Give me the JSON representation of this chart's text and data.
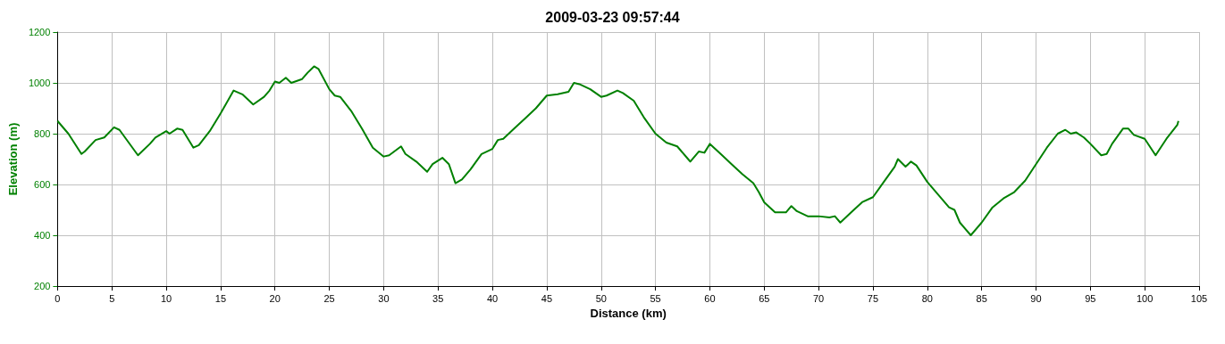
{
  "chart_data": {
    "type": "line",
    "title": "2009-03-23 09:57:44",
    "xlabel": "Distance (km)",
    "ylabel": "Elevation (m)",
    "x": [
      0,
      1,
      2.2,
      2.5,
      3.5,
      4.3,
      5.2,
      5.7,
      7.4,
      8.5,
      9,
      10,
      10.3,
      11,
      11.5,
      12.5,
      13,
      14,
      15,
      16.2,
      17,
      18,
      19,
      19.5,
      20,
      20.4,
      21,
      21.5,
      22.5,
      23,
      23.6,
      24,
      25,
      25.5,
      26,
      27,
      28,
      29,
      30,
      30.5,
      31.6,
      32,
      33,
      34,
      34.5,
      35.4,
      36,
      36.6,
      37.2,
      38,
      39,
      40,
      40.5,
      41,
      42,
      43,
      44,
      45,
      46,
      47,
      47.5,
      48,
      49,
      50,
      50.5,
      51.5,
      52,
      53,
      54,
      55,
      56,
      57,
      58,
      58.2,
      59,
      59.5,
      60,
      61,
      62,
      63,
      64,
      64.5,
      65,
      66,
      67,
      67.5,
      68,
      69,
      70,
      71,
      71.5,
      72,
      73,
      74,
      75,
      76,
      77,
      77.3,
      78,
      78.5,
      79,
      80,
      81,
      82,
      82.5,
      83,
      84,
      85,
      86,
      87,
      88,
      89,
      90,
      91,
      92,
      92.7,
      93.2,
      93.7,
      94.4,
      95,
      96,
      96.5,
      97,
      98,
      98.5,
      99,
      100,
      101,
      102,
      103,
      103.1
    ],
    "series": [
      {
        "color": "#008000",
        "values": [
          850,
          800,
          720,
          730,
          775,
          785,
          825,
          815,
          715,
          760,
          785,
          810,
          800,
          820,
          815,
          745,
          755,
          810,
          880,
          970,
          955,
          915,
          945,
          970,
          1005,
          1000,
          1020,
          1000,
          1015,
          1040,
          1065,
          1055,
          975,
          950,
          945,
          890,
          820,
          745,
          710,
          715,
          750,
          720,
          690,
          650,
          680,
          705,
          680,
          605,
          620,
          660,
          720,
          740,
          775,
          780,
          820,
          860,
          900,
          950,
          955,
          965,
          1000,
          995,
          975,
          945,
          950,
          970,
          960,
          930,
          860,
          800,
          765,
          750,
          700,
          690,
          730,
          725,
          760,
          720,
          680,
          640,
          605,
          570,
          530,
          490,
          490,
          515,
          495,
          475,
          475,
          470,
          475,
          450,
          490,
          530,
          550,
          610,
          670,
          700,
          670,
          690,
          675,
          610,
          560,
          510,
          500,
          450,
          400,
          450,
          510,
          545,
          570,
          615,
          680,
          745,
          800,
          815,
          800,
          805,
          785,
          760,
          715,
          720,
          760,
          820,
          820,
          795,
          780,
          715,
          780,
          835,
          850
        ]
      }
    ],
    "xlim": [
      0,
      105
    ],
    "xticks": [
      0,
      5,
      10,
      15,
      20,
      25,
      30,
      35,
      40,
      45,
      50,
      55,
      60,
      65,
      70,
      75,
      80,
      85,
      90,
      95,
      100,
      105
    ],
    "ylim": [
      200,
      1200
    ],
    "yticks": [
      200,
      400,
      600,
      800,
      1000,
      1200
    ],
    "grid": true,
    "marker": "none",
    "line_style": "solid"
  }
}
